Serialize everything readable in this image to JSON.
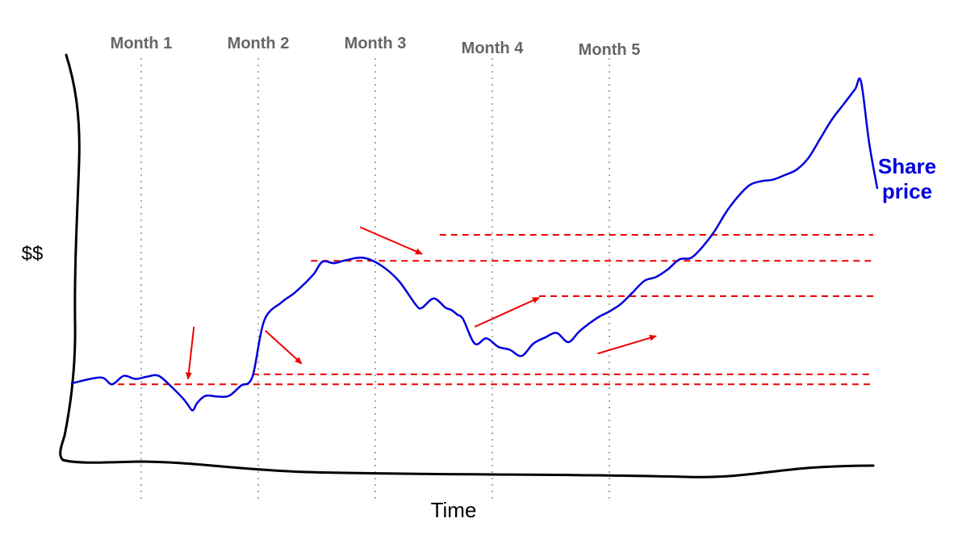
{
  "chart_data": {
    "type": "line",
    "title": "",
    "xlabel": "Time",
    "ylabel": "$$",
    "categories": [
      "Month 1",
      "Month 2",
      "Month 3",
      "Month 4",
      "Month 5"
    ],
    "series": [
      {
        "name": "Share\nprice",
        "color": "#0000dd",
        "x": [
          0.0,
          0.25,
          0.35,
          0.45,
          0.55,
          0.65,
          0.75,
          0.87,
          0.96,
          1.0,
          1.04,
          1.08,
          1.15,
          1.25,
          1.35,
          1.45,
          1.55,
          1.65,
          1.8,
          1.9,
          1.98,
          2.02,
          2.08,
          2.15,
          2.25,
          2.35,
          2.5,
          2.65,
          2.8,
          2.95,
          3.0,
          3.1,
          3.2,
          3.25,
          3.3,
          3.35,
          3.45,
          3.55,
          3.65,
          3.75,
          3.85,
          3.95,
          4.05,
          4.15,
          4.25,
          4.35,
          4.5,
          4.6,
          4.7,
          4.8,
          4.9,
          5.0,
          5.1,
          5.2,
          5.3,
          5.4,
          5.5,
          5.6,
          5.7,
          5.8,
          5.9,
          6.0,
          6.1,
          6.2,
          6.3,
          6.4,
          6.5,
          6.6,
          6.7,
          6.75,
          6.82,
          6.89
        ],
        "values": [
          10.6,
          11.4,
          10.5,
          11.6,
          11.2,
          11.5,
          11.6,
          10.0,
          8.6,
          7.8,
          7.1,
          8.1,
          9.0,
          8.9,
          9.0,
          10.3,
          11.5,
          18.8,
          21.2,
          22.3,
          23.4,
          24.0,
          25.0,
          26.5,
          26.3,
          26.7,
          27.0,
          26.0,
          24.0,
          20.8,
          20.5,
          21.7,
          20.5,
          20.2,
          19.6,
          19.0,
          15.8,
          16.5,
          15.4,
          15.0,
          14.2,
          15.8,
          16.6,
          17.2,
          16.0,
          17.5,
          19.2,
          20.0,
          21.0,
          22.5,
          24.0,
          24.5,
          25.5,
          26.8,
          27.0,
          28.5,
          30.5,
          33.0,
          35.0,
          36.5,
          37.0,
          37.2,
          37.8,
          38.5,
          40.0,
          42.5,
          45.0,
          47.0,
          49.0,
          50.0,
          42.0,
          36.0
        ]
      }
    ],
    "reference_lines": [
      {
        "y": 10.5,
        "x_start": 0.4
      },
      {
        "y": 11.8,
        "x_start": 1.55
      },
      {
        "y": 22.0,
        "x_start": 4.0
      },
      {
        "y": 26.6,
        "x_start": 2.05
      },
      {
        "y": 30.0,
        "x_start": 3.15
      }
    ],
    "annotations": [
      {
        "type": "arrow",
        "target_x": 1.0,
        "target_y": 11.2,
        "from_x": 1.05,
        "from_y": 18.0
      },
      {
        "type": "arrow",
        "target_x": 1.97,
        "target_y": 13.2,
        "from_x": 1.66,
        "from_y": 17.5
      },
      {
        "type": "arrow",
        "target_x": 3.0,
        "target_y": 27.5,
        "from_x": 2.47,
        "from_y": 31.0
      },
      {
        "type": "arrow",
        "target_x": 4.0,
        "target_y": 21.8,
        "from_x": 3.45,
        "from_y": 18.0
      },
      {
        "type": "arrow",
        "target_x": 5.0,
        "target_y": 16.8,
        "from_x": 4.5,
        "from_y": 14.5
      }
    ],
    "xlim": [
      0,
      7
    ],
    "ylim": [
      0,
      52
    ],
    "grid": false,
    "legend": "none"
  }
}
